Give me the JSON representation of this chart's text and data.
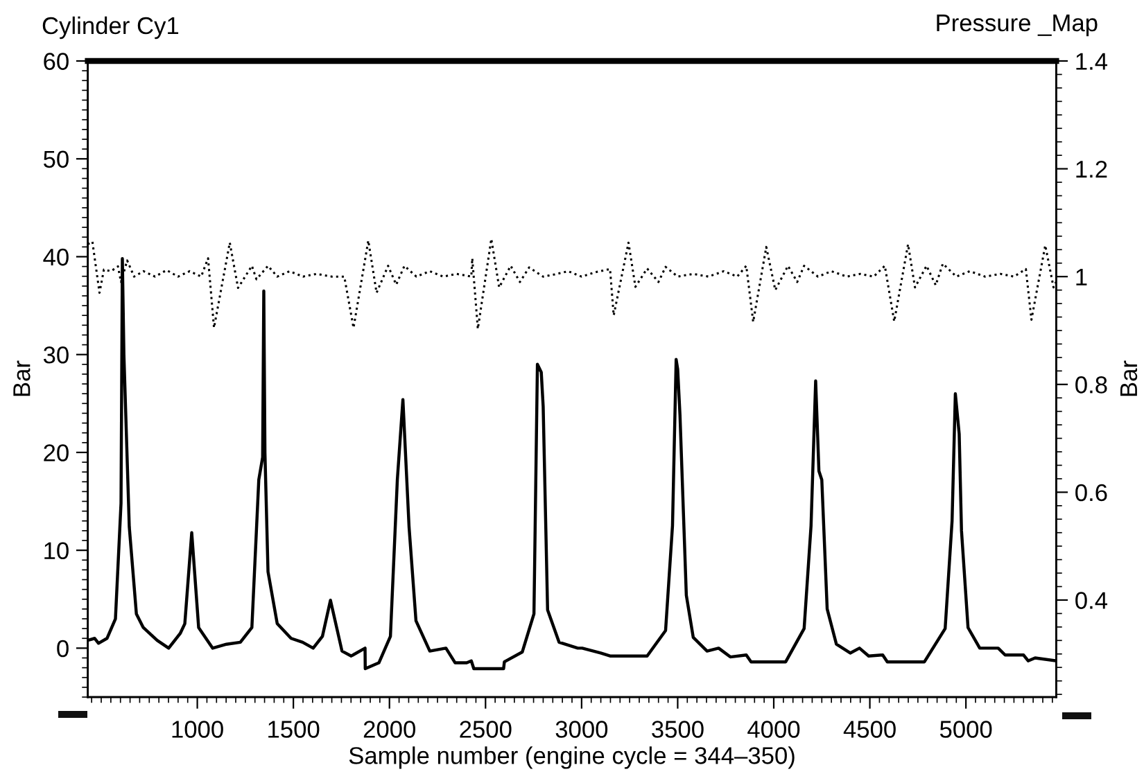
{
  "chart_data": {
    "type": "line",
    "title": "Cylinder Cy1",
    "subtitle": "Pressure _Map",
    "xlabel": "Sample number (engine cycle = 344–350)",
    "ylabel": "Bar",
    "y2label": "Bar",
    "xlim": [
      430,
      5470
    ],
    "xticks": [
      1000,
      1500,
      2000,
      2500,
      3000,
      3500,
      4000,
      4500,
      5000
    ],
    "ylim": [
      -5,
      60
    ],
    "yticks": [
      0,
      10,
      20,
      30,
      40,
      50,
      60
    ],
    "y2lim": [
      0.22,
      1.4
    ],
    "y2ticks": [
      0.4,
      0.6,
      0.8,
      1,
      1.2,
      1.4
    ],
    "grid": false,
    "legend": false,
    "series": [
      {
        "color": "#000000",
        "line_style": "solid",
        "x": [
          430,
          466,
          486,
          530,
          574,
          603,
          610,
          618,
          646,
          683,
          719,
          791,
          851,
          911,
          935,
          971,
          1007,
          1080,
          1152,
          1224,
          1284,
          1320,
          1340,
          1346,
          1352,
          1368,
          1416,
          1488,
          1548,
          1603,
          1651,
          1693,
          1753,
          1801,
          1873,
          1874,
          1945,
          2005,
          2041,
          2070,
          2102,
          2138,
          2210,
          2294,
          2342,
          2402,
          2426,
          2439,
          2594,
          2598,
          2691,
          2752,
          2770,
          2790,
          2800,
          2823,
          2883,
          2980,
          3003,
          3099,
          3148,
          3341,
          3437,
          3473,
          3492,
          3500,
          3512,
          3545,
          3581,
          3653,
          3713,
          3774,
          3857,
          3882,
          4062,
          4158,
          4194,
          4218,
          4235,
          4250,
          4278,
          4326,
          4398,
          4446,
          4494,
          4567,
          4591,
          4784,
          4892,
          4928,
          4945,
          4965,
          4977,
          5011,
          5072,
          5168,
          5204,
          5300,
          5324,
          5360,
          5469
        ],
        "values": [
          0.8,
          1.0,
          0.5,
          1.0,
          3.0,
          14.8,
          39.8,
          30,
          12.4,
          3.5,
          2.1,
          0.8,
          0.0,
          1.5,
          2.5,
          11.8,
          2.1,
          0.0,
          0.4,
          0.6,
          2.1,
          17.2,
          19.5,
          36.5,
          20,
          7.8,
          2.5,
          1.0,
          0.6,
          0.0,
          1.2,
          4.9,
          -0.3,
          -0.8,
          0.0,
          -2.1,
          -1.5,
          1.2,
          17.2,
          25.4,
          12.4,
          2.8,
          -0.3,
          0.0,
          -1.5,
          -1.5,
          -1.3,
          -2.1,
          -2.1,
          -1.4,
          -0.4,
          3.5,
          29,
          28.2,
          24.7,
          3.9,
          0.6,
          0.0,
          0.0,
          -0.5,
          -0.8,
          -0.8,
          1.8,
          12.5,
          29.5,
          28.5,
          23.8,
          5.4,
          1.1,
          -0.3,
          0.0,
          -0.9,
          -0.7,
          -1.4,
          -1.4,
          2.0,
          12.5,
          27.3,
          18.1,
          17.2,
          4.0,
          0.4,
          -0.5,
          0.0,
          -0.8,
          -0.7,
          -1.4,
          -1.4,
          2.0,
          13.0,
          26.0,
          21.9,
          12.0,
          2.1,
          0.0,
          0.0,
          -0.7,
          -0.7,
          -1.3,
          -1.0,
          -1.3
        ]
      },
      {
        "color": "#000000",
        "line_style": "dotted",
        "axis": "y2",
        "x": [
          430,
          454,
          491,
          514,
          551,
          587,
          603,
          635,
          671,
          720,
          780,
          840,
          900,
          960,
          1020,
          1056,
          1087,
          1169,
          1212,
          1284,
          1308,
          1368,
          1416,
          1480,
          1550,
          1620,
          1700,
          1765,
          1813,
          1890,
          1933,
          1993,
          2035,
          2078,
          2140,
          2210,
          2280,
          2350,
          2426,
          2431,
          2460,
          2530,
          2571,
          2631,
          2679,
          2727,
          2800,
          2859,
          2930,
          3000,
          3070,
          3148,
          3167,
          3244,
          3280,
          3341,
          3400,
          3437,
          3500,
          3580,
          3660,
          3740,
          3810,
          3857,
          3893,
          3961,
          4008,
          4074,
          4122,
          4158,
          4230,
          4300,
          4380,
          4450,
          4520,
          4578,
          4627,
          4699,
          4735,
          4795,
          4843,
          4880,
          4950,
          5020,
          5100,
          5180,
          5250,
          5312,
          5341,
          5413,
          5456,
          5469
        ],
        "values": [
          1.06,
          1.065,
          0.97,
          1.013,
          1.01,
          1.019,
          0.99,
          1.03,
          1.0,
          1.01,
          1.0,
          1.012,
          1.0,
          1.01,
          1.0,
          1.034,
          0.905,
          1.063,
          0.979,
          1.02,
          0.995,
          1.02,
          1.0,
          1.01,
          1.0,
          1.005,
          1.0,
          1.0,
          0.905,
          1.067,
          0.97,
          1.02,
          0.985,
          1.02,
          1.0,
          1.01,
          1.0,
          1.005,
          1.0,
          1.034,
          0.903,
          1.07,
          0.98,
          1.02,
          0.99,
          1.017,
          1.0,
          1.004,
          1.01,
          1.0,
          1.008,
          1.014,
          0.928,
          1.063,
          0.981,
          1.015,
          0.99,
          1.018,
          1.0,
          1.005,
          1.0,
          1.01,
          1.0,
          1.02,
          0.916,
          1.055,
          0.975,
          1.02,
          0.99,
          1.02,
          1.0,
          1.01,
          1.0,
          1.005,
          1.0,
          1.02,
          0.917,
          1.06,
          0.98,
          1.02,
          0.984,
          1.024,
          1.0,
          1.01,
          1.0,
          1.005,
          1.0,
          1.014,
          0.92,
          1.058,
          0.98,
          0.99
        ]
      }
    ]
  }
}
